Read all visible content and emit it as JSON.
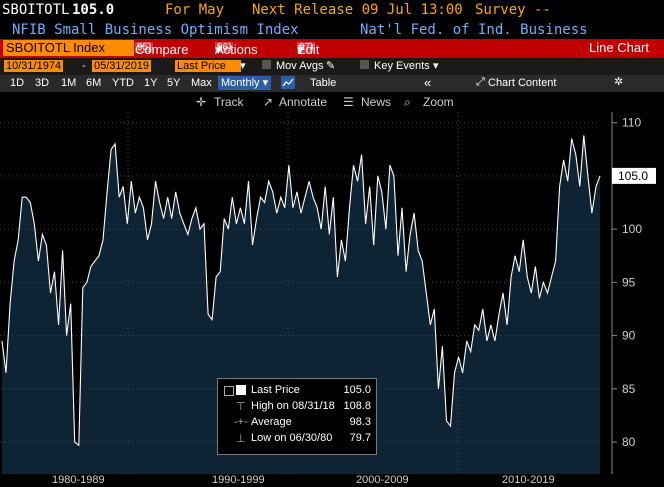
{
  "header": {
    "ticker": "SBOITOTL",
    "last": "105.0",
    "for_label": "For May",
    "next_release": "Next Release 09 Jul 13:00",
    "survey": "Survey --",
    "title": "NFIB Small Business Optimism Index",
    "source": "Nat'l Fed. of Ind. Business"
  },
  "toolbar": {
    "security": "SBOITOTL Index",
    "compare_num": "95)",
    "compare": "Compare",
    "actions_num": "96)",
    "actions": "Actions",
    "edit_num": "97)",
    "edit": "Edit",
    "chart_type": "Line Chart"
  },
  "range": {
    "start": "10/31/1974",
    "end": "05/31/2019",
    "price_type": "Last Price",
    "mov_avgs": "Mov Avgs",
    "key_events": "Key Events"
  },
  "periods": [
    "1D",
    "3D",
    "1M",
    "6M",
    "YTD",
    "1Y",
    "5Y",
    "Max"
  ],
  "period_selected": "Monthly",
  "table": "Table",
  "chart_content": "Chart Content",
  "tools": [
    "Track",
    "Annotate",
    "News",
    "Zoom"
  ],
  "chart_data": {
    "type": "line",
    "ylim": [
      77,
      111
    ],
    "yticks": [
      "110",
      "105",
      "100",
      "95",
      "90",
      "85",
      "80"
    ],
    "last_value_label": "105.0",
    "x_labels": [
      "1980-1989",
      "1990-1999",
      "2000-2009",
      "2010-2019"
    ],
    "series": [
      {
        "values": [
          89.5,
          86.5,
          93,
          97,
          99,
          103,
          103,
          102.5,
          100.5,
          97,
          99.5,
          98.5,
          94,
          96,
          91,
          98,
          90,
          93,
          80,
          79.7,
          94.5,
          95,
          96.5,
          97,
          97.5,
          99,
          103.5,
          107.5,
          108,
          103,
          104,
          100.5,
          104.5,
          101.5,
          103,
          102,
          99,
          100.5,
          104.5,
          102.5,
          101,
          103,
          101,
          103.5,
          101.5,
          100.5,
          99.5,
          101,
          102,
          100,
          100.5,
          92,
          91.5,
          95.5,
          96,
          101,
          100,
          103,
          100.5,
          102,
          100.5,
          104.5,
          98.5,
          101,
          103,
          102.5,
          104.5,
          103.5,
          101.5,
          103,
          102,
          106,
          102,
          103.5,
          101.5,
          103,
          104.5,
          103,
          102,
          100,
          104,
          99.5,
          103,
          95.5,
          99,
          97,
          102,
          106,
          104.5,
          107,
          100.5,
          104,
          98.5,
          105,
          103.5,
          100,
          106,
          105,
          97.5,
          102,
          96,
          99.5,
          101.5,
          98,
          97,
          94,
          91,
          92.5,
          85,
          89,
          82,
          81.5,
          86.5,
          88,
          86.5,
          89.5,
          88.5,
          91,
          90.5,
          92.5,
          89.5,
          91,
          89.5,
          92,
          94,
          91,
          95.5,
          97.5,
          96,
          99,
          95.5,
          94,
          96.5,
          93.5,
          95,
          94,
          95.5,
          97,
          104,
          106.5,
          104.5,
          108.5,
          107,
          104,
          108.8,
          105,
          101.5,
          104,
          105
        ]
      }
    ]
  },
  "legend": {
    "items": [
      {
        "label": "Last Price",
        "value": "105.0"
      },
      {
        "label": "High on 08/31/18",
        "value": "108.8"
      },
      {
        "label": "Average",
        "value": "98.3"
      },
      {
        "label": "Low on 06/30/80",
        "value": "79.7"
      }
    ]
  },
  "colors": {
    "orange": "#ff8c00",
    "red": "#c00000",
    "area": "#0e2435",
    "line": "#ffffff"
  }
}
